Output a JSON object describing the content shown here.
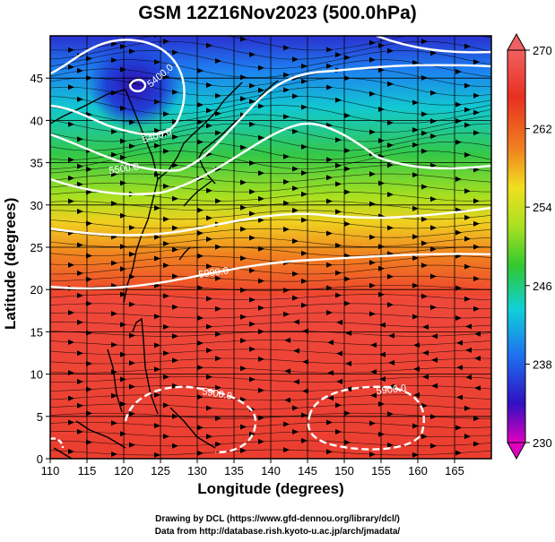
{
  "title": "GSM 12Z16Nov2023 (500.0hPa)",
  "x_axis": {
    "label": "Longitude (degrees)",
    "ticks": [
      "110",
      "115",
      "120",
      "125",
      "130",
      "135",
      "140",
      "145",
      "150",
      "155",
      "160",
      "165"
    ],
    "range": [
      110,
      170
    ]
  },
  "y_axis": {
    "label": "Latitude  (degrees)",
    "ticks": [
      "0",
      "5",
      "10",
      "15",
      "20",
      "25",
      "30",
      "35",
      "40",
      "45"
    ],
    "range": [
      0,
      50
    ]
  },
  "colorbar": {
    "labels": [
      "270",
      "262",
      "254",
      "246",
      "238",
      "230"
    ],
    "range": [
      230,
      270
    ],
    "colors": [
      "#e000c0",
      "#3010c0",
      "#1e6ff0",
      "#10d0d8",
      "#30c830",
      "#a8e020",
      "#f0e020",
      "#f08020",
      "#e83020",
      "#f06060"
    ]
  },
  "contour_labels": [
    "5400.0",
    "5500.0",
    "5600.0",
    "5900.0",
    "5900.0",
    "5900.0"
  ],
  "credits": [
    "Drawing by DCL (https://www.gfd-dennou.org/library/dcl/)",
    "Data from http://database.rish.kyoto-u.ac.jp/arch/jmadata/"
  ],
  "colors": {
    "coastline": "#000000",
    "contour": "#ffffff",
    "streamline": "#000000"
  }
}
